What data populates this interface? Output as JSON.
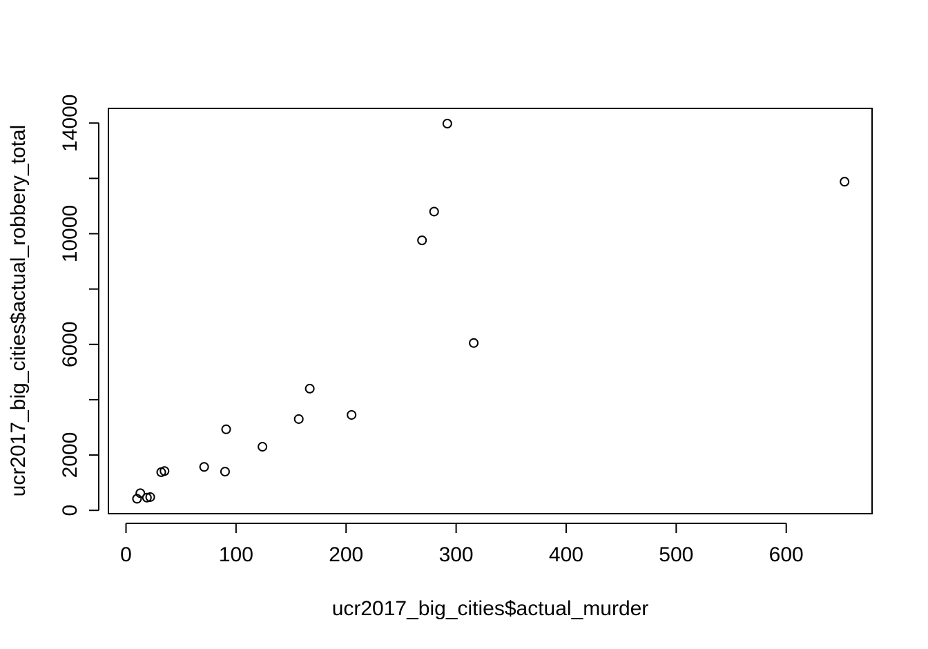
{
  "chart_data": {
    "type": "scatter",
    "title": "",
    "xlabel": "ucr2017_big_cities$actual_murder",
    "ylabel": "ucr2017_big_cities$actual_robbery_total",
    "xlim": [
      -16,
      678
    ],
    "ylim": [
      -120,
      14530
    ],
    "xticks": [
      0,
      100,
      200,
      300,
      400,
      500,
      600
    ],
    "xtick_labels": [
      "0",
      "100",
      "200",
      "300",
      "400",
      "500",
      "600"
    ],
    "yticks": [
      0,
      2000,
      4000,
      6000,
      8000,
      10000,
      12000,
      14000
    ],
    "ytick_labels": [
      "0",
      "2000",
      "",
      "6000",
      "",
      "10000",
      "",
      "14000"
    ],
    "grid": false,
    "marker": "open-circle",
    "points": [
      {
        "x": 10,
        "y": 420
      },
      {
        "x": 13,
        "y": 620
      },
      {
        "x": 19,
        "y": 460
      },
      {
        "x": 22,
        "y": 480
      },
      {
        "x": 32,
        "y": 1380
      },
      {
        "x": 35,
        "y": 1420
      },
      {
        "x": 71,
        "y": 1570
      },
      {
        "x": 90,
        "y": 1400
      },
      {
        "x": 91,
        "y": 2930
      },
      {
        "x": 124,
        "y": 2300
      },
      {
        "x": 157,
        "y": 3300
      },
      {
        "x": 167,
        "y": 4400
      },
      {
        "x": 205,
        "y": 3450
      },
      {
        "x": 269,
        "y": 9760
      },
      {
        "x": 280,
        "y": 10800
      },
      {
        "x": 292,
        "y": 13980
      },
      {
        "x": 316,
        "y": 6050
      },
      {
        "x": 653,
        "y": 11880
      }
    ]
  }
}
